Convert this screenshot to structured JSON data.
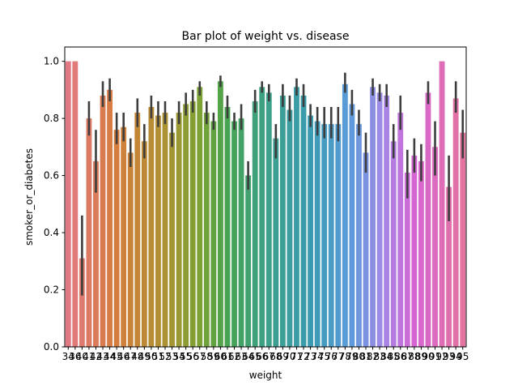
{
  "chart_data": {
    "type": "bar",
    "title": "Bar plot of weight vs. disease",
    "xlabel": "weight",
    "ylabel": "smoker_or_diabetes",
    "ylim": [
      0,
      1.05
    ],
    "y_ticks": [
      "0.0",
      "0.2",
      "0.4",
      "0.6",
      "0.8",
      "1.0"
    ],
    "grid": false,
    "legend": "none",
    "categories": [
      "34",
      "36",
      "40",
      "41",
      "42",
      "43",
      "44",
      "45",
      "46",
      "47",
      "48",
      "49",
      "50",
      "51",
      "52",
      "53",
      "54",
      "55",
      "56",
      "57",
      "58",
      "59",
      "60",
      "61",
      "62",
      "63",
      "64",
      "65",
      "66",
      "67",
      "68",
      "69",
      "70",
      "71",
      "72",
      "73",
      "74",
      "75",
      "76",
      "77",
      "78",
      "79",
      "80",
      "81",
      "82",
      "83",
      "84",
      "85",
      "86",
      "87",
      "88",
      "89",
      "90",
      "91",
      "92",
      "93",
      "94",
      "95"
    ],
    "values": [
      1.0,
      1.0,
      0.31,
      0.8,
      0.65,
      0.88,
      0.9,
      0.76,
      0.77,
      0.68,
      0.82,
      0.72,
      0.84,
      0.81,
      0.82,
      0.75,
      0.82,
      0.85,
      0.86,
      0.91,
      0.82,
      0.79,
      0.93,
      0.84,
      0.79,
      0.8,
      0.6,
      0.86,
      0.91,
      0.89,
      0.73,
      0.88,
      0.83,
      0.91,
      0.88,
      0.81,
      0.79,
      0.78,
      0.78,
      0.78,
      0.92,
      0.85,
      0.78,
      0.68,
      0.91,
      0.89,
      0.88,
      0.72,
      0.82,
      0.61,
      0.67,
      0.65,
      0.89,
      0.7,
      1.0,
      0.56,
      0.87,
      0.75
    ],
    "error_low": [
      1.0,
      1.0,
      0.18,
      0.74,
      0.54,
      0.84,
      0.86,
      0.71,
      0.72,
      0.63,
      0.77,
      0.66,
      0.8,
      0.77,
      0.78,
      0.7,
      0.78,
      0.81,
      0.82,
      0.88,
      0.78,
      0.76,
      0.91,
      0.8,
      0.76,
      0.76,
      0.55,
      0.82,
      0.89,
      0.86,
      0.66,
      0.84,
      0.79,
      0.88,
      0.84,
      0.77,
      0.74,
      0.73,
      0.73,
      0.72,
      0.89,
      0.81,
      0.74,
      0.61,
      0.88,
      0.86,
      0.84,
      0.66,
      0.76,
      0.52,
      0.61,
      0.58,
      0.85,
      0.6,
      1.0,
      0.44,
      0.82,
      0.66
    ],
    "error_high": [
      1.0,
      1.0,
      0.46,
      0.86,
      0.76,
      0.93,
      0.94,
      0.82,
      0.82,
      0.73,
      0.87,
      0.78,
      0.88,
      0.86,
      0.86,
      0.8,
      0.86,
      0.89,
      0.9,
      0.93,
      0.86,
      0.82,
      0.95,
      0.88,
      0.82,
      0.85,
      0.65,
      0.9,
      0.93,
      0.92,
      0.78,
      0.92,
      0.88,
      0.94,
      0.92,
      0.85,
      0.84,
      0.84,
      0.84,
      0.84,
      0.96,
      0.9,
      0.83,
      0.75,
      0.94,
      0.92,
      0.92,
      0.78,
      0.88,
      0.69,
      0.73,
      0.71,
      0.93,
      0.79,
      1.0,
      0.67,
      0.93,
      0.83
    ],
    "palette": "husl",
    "error_bar_color": "#3d3d3d"
  }
}
